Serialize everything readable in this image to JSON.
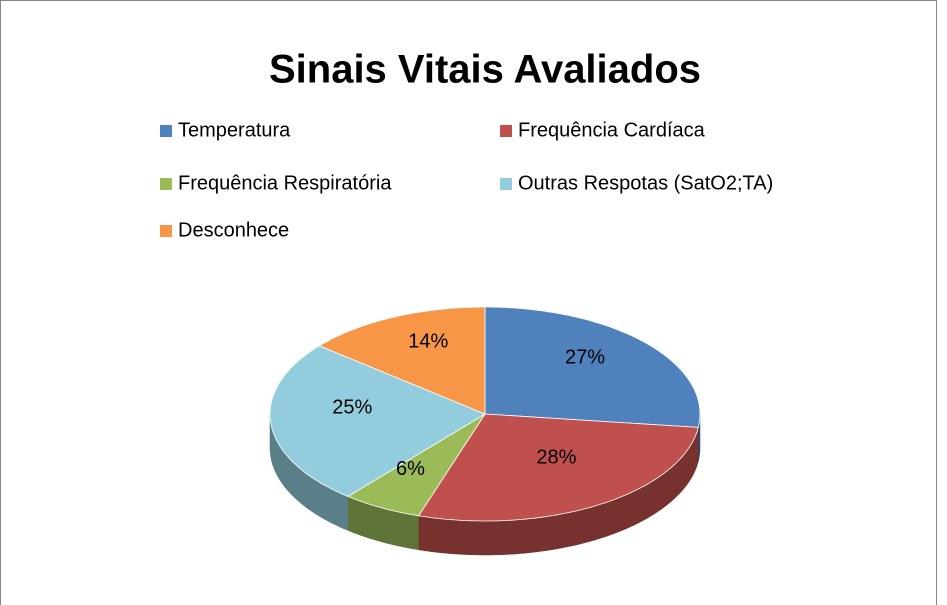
{
  "chart_data": {
    "type": "pie3d",
    "title": "Sinais Vitais Avaliados",
    "categories": [
      "Temperatura",
      "Frequência Cardíaca",
      "Frequência Respiratória",
      "Outras Respotas (SatO2;TA)",
      "Desconhece"
    ],
    "values": [
      27,
      28,
      6,
      25,
      14
    ],
    "value_labels": [
      "27%",
      "28%",
      "6%",
      "25%",
      "14%"
    ],
    "colors": [
      "#4f81bd",
      "#c0504d",
      "#9bbb59",
      "#93cddd",
      "#f79646"
    ],
    "legend": "top"
  }
}
